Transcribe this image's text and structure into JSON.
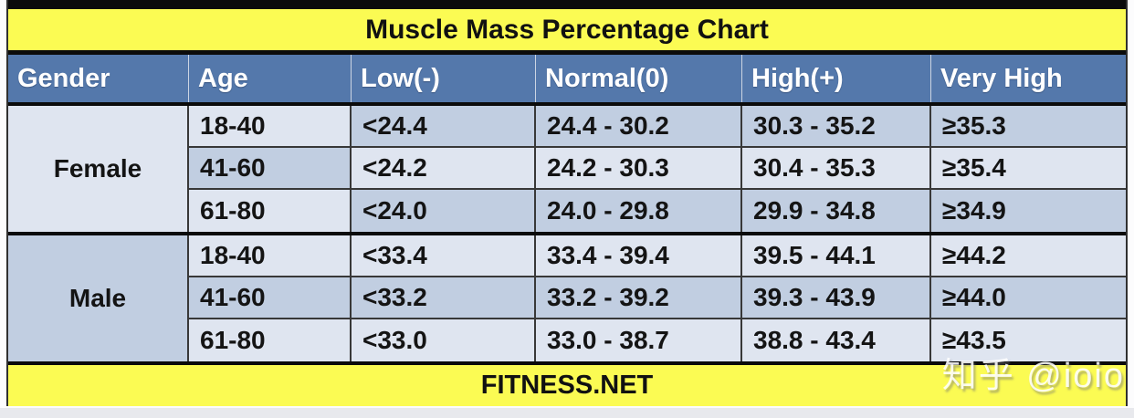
{
  "title": "Muscle Mass Percentage Chart",
  "footer": "FITNESS.NET",
  "watermark": "知乎 @ioio",
  "colors": {
    "title_bg": "#fbfb53",
    "footer_bg": "#fbfb53",
    "header_bg": "#5478ab",
    "header_text": "#ffffff",
    "cell_light": "#dfe5f0",
    "cell_dark": "#c1cee1",
    "border_black": "#0b0b0b",
    "grid_line": "#383838"
  },
  "table": {
    "columns": [
      "Gender",
      "Age",
      "Low(-)",
      "Normal(0)",
      "High(+)",
      "Very High"
    ],
    "groups": [
      {
        "gender": "Female",
        "gender_shade": "light",
        "rows": [
          {
            "age": "18-40",
            "low": "<24.4",
            "normal": "24.4 - 30.2",
            "high": "30.3 - 35.2",
            "very_high": "≥35.3",
            "age_shade": "light",
            "data_shade": "dark"
          },
          {
            "age": "41-60",
            "low": "<24.2",
            "normal": "24.2 - 30.3",
            "high": "30.4 - 35.3",
            "very_high": "≥35.4",
            "age_shade": "dark",
            "data_shade": "light"
          },
          {
            "age": "61-80",
            "low": "<24.0",
            "normal": "24.0 - 29.8",
            "high": "29.9 - 34.8",
            "very_high": "≥34.9",
            "age_shade": "light",
            "data_shade": "dark"
          }
        ]
      },
      {
        "gender": "Male",
        "gender_shade": "dark",
        "rows": [
          {
            "age": "18-40",
            "low": "<33.4",
            "normal": "33.4 - 39.4",
            "high": "39.5 - 44.1",
            "very_high": "≥44.2",
            "age_shade": "light",
            "data_shade": "light"
          },
          {
            "age": "41-60",
            "low": "<33.2",
            "normal": "33.2 - 39.2",
            "high": "39.3 - 43.9",
            "very_high": "≥44.0",
            "age_shade": "dark",
            "data_shade": "dark"
          },
          {
            "age": "61-80",
            "low": "<33.0",
            "normal": "33.0 - 38.7",
            "high": "38.8 - 43.4",
            "very_high": "≥43.5",
            "age_shade": "light",
            "data_shade": "light"
          }
        ]
      }
    ]
  },
  "chart_data": {
    "type": "table",
    "title": "Muscle Mass Percentage Chart",
    "columns": [
      "Gender",
      "Age",
      "Low(-)",
      "Normal(0)",
      "High(+)",
      "Very High"
    ],
    "rows": [
      [
        "Female",
        "18-40",
        "<24.4",
        "24.4 - 30.2",
        "30.3 - 35.2",
        "≥35.3"
      ],
      [
        "Female",
        "41-60",
        "<24.2",
        "24.2 - 30.3",
        "30.4 - 35.3",
        "≥35.4"
      ],
      [
        "Female",
        "61-80",
        "<24.0",
        "24.0 - 29.8",
        "29.9 - 34.8",
        "≥34.9"
      ],
      [
        "Male",
        "18-40",
        "<33.4",
        "33.4 - 39.4",
        "39.5 - 44.1",
        "≥44.2"
      ],
      [
        "Male",
        "41-60",
        "<33.2",
        "33.2 - 39.2",
        "39.3 - 43.9",
        "≥44.0"
      ],
      [
        "Male",
        "61-80",
        "<33.0",
        "33.0 - 38.7",
        "38.8 - 43.4",
        "≥43.5"
      ]
    ],
    "source": "FITNESS.NET"
  }
}
